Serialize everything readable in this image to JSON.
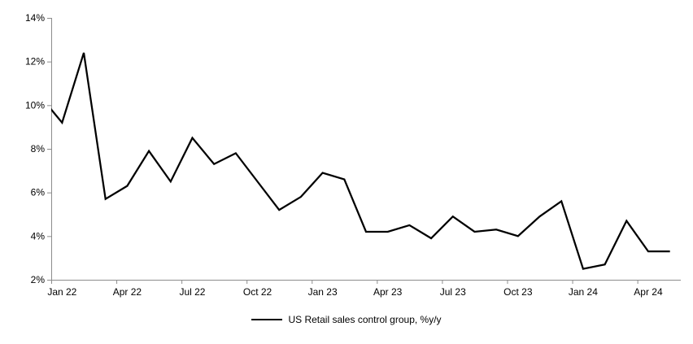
{
  "chart_data": {
    "type": "line",
    "title": "",
    "legend": "US Retail sales control group, %y/y",
    "legend_position": "bottom-center",
    "grid": "off",
    "series_color": "#000000",
    "axis_color": "#8c8c8c",
    "ylim": [
      2,
      14
    ],
    "ytick_step": 2,
    "ytick_labels": [
      "14%",
      "12%",
      "10%",
      "8%",
      "6%",
      "4%",
      "2%"
    ],
    "xtick_labels": [
      "Jan 22",
      "Apr 22",
      "Jul 22",
      "Oct 22",
      "Jan 23",
      "Apr 23",
      "Jul 23",
      "Oct 23",
      "Jan 24",
      "Apr 24"
    ],
    "x": [
      "Dec 21",
      "Jan 22",
      "Feb 22",
      "Mar 22",
      "Apr 22",
      "May 22",
      "Jun 22",
      "Jul 22",
      "Aug 22",
      "Sep 22",
      "Oct 22",
      "Nov 22",
      "Dec 22",
      "Jan 23",
      "Feb 23",
      "Mar 23",
      "Apr 23",
      "May 23",
      "Jun 23",
      "Jul 23",
      "Aug 23",
      "Sep 23",
      "Oct 23",
      "Nov 23",
      "Dec 23",
      "Jan 24",
      "Feb 24",
      "Mar 24",
      "Apr 24",
      "May 24"
    ],
    "values": [
      10.4,
      9.2,
      12.4,
      5.7,
      6.3,
      7.9,
      6.5,
      8.5,
      7.3,
      7.8,
      6.5,
      5.2,
      5.8,
      6.9,
      6.6,
      4.2,
      4.2,
      4.5,
      3.9,
      4.9,
      4.2,
      4.3,
      4.0,
      4.9,
      5.6,
      2.5,
      2.7,
      4.7,
      3.3,
      3.3
    ],
    "first_point_clipped_at_axis": "Dec 21"
  }
}
